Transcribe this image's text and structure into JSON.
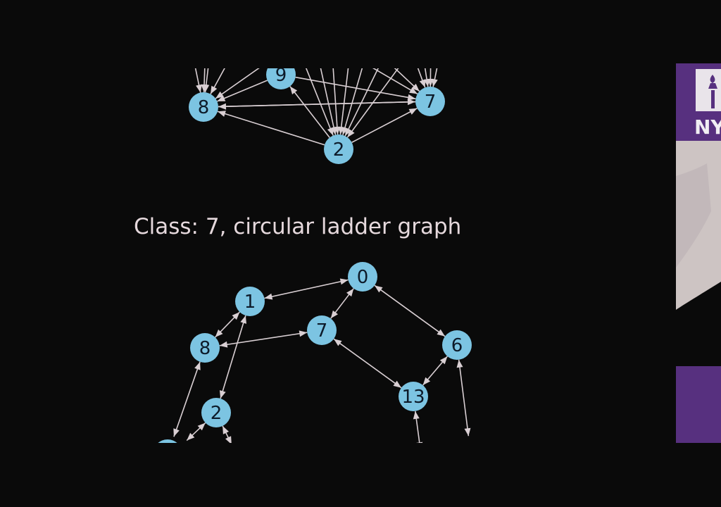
{
  "colors": {
    "background": "#0a0a0a",
    "node_fill": "#7cc4e2",
    "edge": "#d9cfd3",
    "caption": "#e5d8dc",
    "logo_purple": "#57307f"
  },
  "logo": {
    "text": "NY"
  },
  "top_graph": {
    "nodes": [
      {
        "id": "9",
        "label": "9"
      },
      {
        "id": "8",
        "label": "8"
      },
      {
        "id": "7",
        "label": "7"
      },
      {
        "id": "2",
        "label": "2"
      }
    ],
    "edges": [
      [
        "2",
        "8"
      ],
      [
        "2",
        "7"
      ],
      [
        "2",
        "9"
      ],
      [
        "8",
        "7"
      ],
      [
        "9",
        "8"
      ],
      [
        "9",
        "7"
      ],
      [
        "7",
        "8"
      ]
    ]
  },
  "bottom_graph": {
    "caption": "Class: 7, circular ladder graph",
    "nodes": [
      {
        "id": "0",
        "label": "0"
      },
      {
        "id": "1",
        "label": "1"
      },
      {
        "id": "7",
        "label": "7"
      },
      {
        "id": "8",
        "label": "8"
      },
      {
        "id": "6",
        "label": "6"
      },
      {
        "id": "13",
        "label": "13"
      },
      {
        "id": "2",
        "label": "2"
      }
    ],
    "edges": [
      [
        "0",
        "1"
      ],
      [
        "0",
        "7"
      ],
      [
        "0",
        "6"
      ],
      [
        "1",
        "8"
      ],
      [
        "1",
        "2"
      ],
      [
        "8",
        "7"
      ],
      [
        "7",
        "13"
      ],
      [
        "6",
        "13"
      ]
    ]
  }
}
